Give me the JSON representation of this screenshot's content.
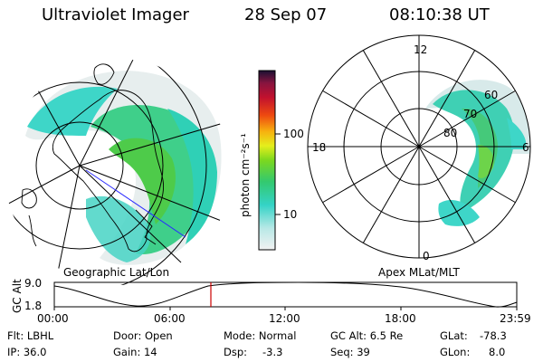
{
  "header": {
    "instrument": "Ultraviolet Imager",
    "date": "28 Sep 07",
    "time": "08:10:38 UT"
  },
  "colorbar": {
    "label": "photon cm⁻²s⁻¹",
    "ticks": [
      "100",
      "10"
    ],
    "scale": "log"
  },
  "left_map": {
    "caption": "Geographic Lat/Lon"
  },
  "right_map": {
    "caption": "Apex MLat/MLT",
    "mlt_labels": {
      "top": "12",
      "left": "18",
      "right": "6",
      "bottom": "0"
    },
    "lat_labels": [
      "60",
      "70",
      "80"
    ]
  },
  "altitude_plot": {
    "ylabel": "GC Alt",
    "ymax_label": "9.0",
    "ymin_label": "1.8",
    "x_ticks": [
      "00:00",
      "06:00",
      "12:00",
      "18:00",
      "23:59"
    ],
    "marker_time": "08:10:38",
    "marker_color": "#cc0000"
  },
  "footer": {
    "filter": "Flt: LBHL",
    "ip": "IP: 36.0",
    "door": "Door: Open",
    "gain": "Gain: 14",
    "mode": "Mode: Normal",
    "dsp_label": "Dsp:",
    "dsp_value": "-3.3",
    "gc_alt": "GC Alt: 6.5 Re",
    "seq": "Seq: 39",
    "glat_label": "GLat:",
    "glat_value": "-78.3",
    "glon_label": "GLon:",
    "glon_value": "8.0"
  }
}
